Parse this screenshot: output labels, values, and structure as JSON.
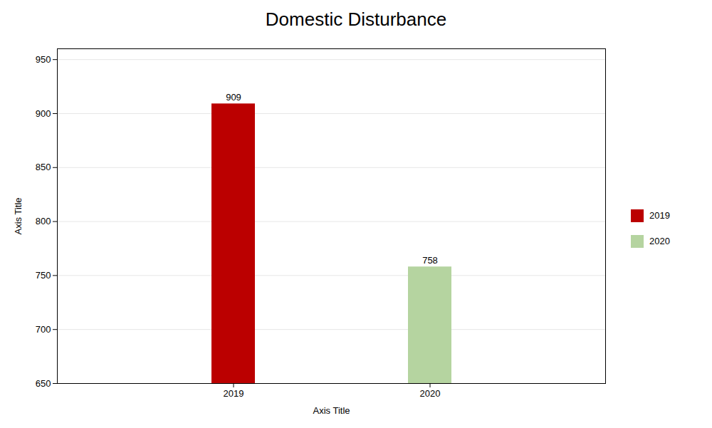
{
  "chart_data": {
    "type": "bar",
    "title": "Domestic Disturbance",
    "xlabel": "Axis Title",
    "ylabel": "Axis Title",
    "categories": [
      "2019",
      "2020"
    ],
    "values": [
      909,
      758
    ],
    "colors": [
      "#bb0000",
      "#b5d4a0"
    ],
    "ylim": [
      650,
      960
    ],
    "yticks": [
      650,
      700,
      750,
      800,
      850,
      900,
      950
    ],
    "grid": true,
    "data_labels": true,
    "legend": "right"
  }
}
